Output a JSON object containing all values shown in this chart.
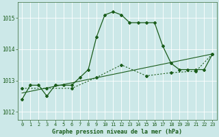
{
  "title": "Graphe pression niveau de la mer (hPa)",
  "bg_color": "#cce8e8",
  "grid_color": "#ffffff",
  "line_color": "#1a5c1a",
  "xlim": [
    -0.5,
    23.5
  ],
  "ylim": [
    1011.75,
    1015.5
  ],
  "yticks": [
    1012,
    1013,
    1014,
    1015
  ],
  "xticks": [
    0,
    1,
    2,
    3,
    4,
    5,
    6,
    7,
    8,
    9,
    10,
    11,
    12,
    13,
    14,
    15,
    16,
    17,
    18,
    19,
    20,
    21,
    22,
    23
  ],
  "series1_x": [
    0,
    1,
    2,
    3,
    4,
    5,
    6,
    7,
    8,
    9,
    10,
    11,
    12,
    13,
    14,
    15,
    16,
    17,
    18,
    19,
    20,
    21,
    22,
    23
  ],
  "series1_y": [
    1012.4,
    1012.85,
    1012.85,
    1012.5,
    1012.85,
    1012.85,
    1012.85,
    1013.1,
    1013.35,
    1014.4,
    1015.1,
    1015.2,
    1015.1,
    1014.85,
    1014.85,
    1014.85,
    1014.85,
    1014.1,
    1013.55,
    1013.35,
    1013.35,
    1013.35,
    1013.35,
    1013.85
  ],
  "series2_x": [
    0,
    3,
    6,
    9,
    12,
    15,
    18,
    21,
    23
  ],
  "series2_y": [
    1012.75,
    1012.75,
    1012.75,
    1013.1,
    1013.5,
    1013.15,
    1013.25,
    1013.3,
    1013.85
  ],
  "series3_x": [
    0,
    23
  ],
  "series3_y": [
    1012.6,
    1013.85
  ]
}
